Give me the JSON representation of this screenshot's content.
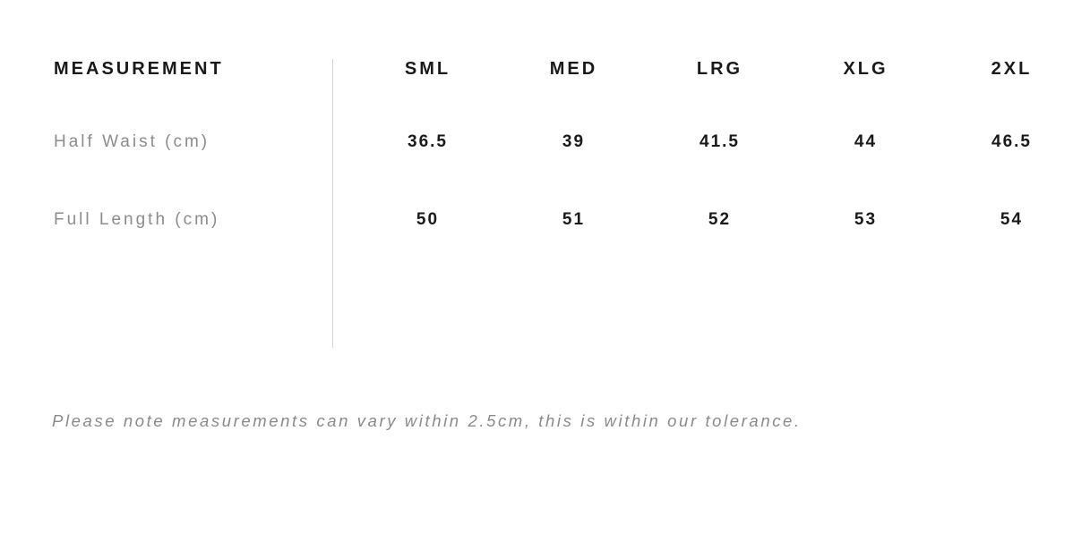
{
  "table": {
    "header": {
      "measurement_label": "MEASUREMENT",
      "sizes": [
        "SML",
        "MED",
        "LRG",
        "XLG",
        "2XL"
      ]
    },
    "rows": [
      {
        "label": "Half Waist (cm)",
        "values": [
          "36.5",
          "39",
          "41.5",
          "44",
          "46.5"
        ]
      },
      {
        "label": "Full Length (cm)",
        "values": [
          "50",
          "51",
          "52",
          "53",
          "54"
        ]
      }
    ]
  },
  "note": "Please note measurements can vary within 2.5cm, this is within our tolerance.",
  "colors": {
    "background": "#ffffff",
    "text_dark": "#1a1a1a",
    "text_gray": "#8c8c8c",
    "divider": "#d6d6d6"
  }
}
